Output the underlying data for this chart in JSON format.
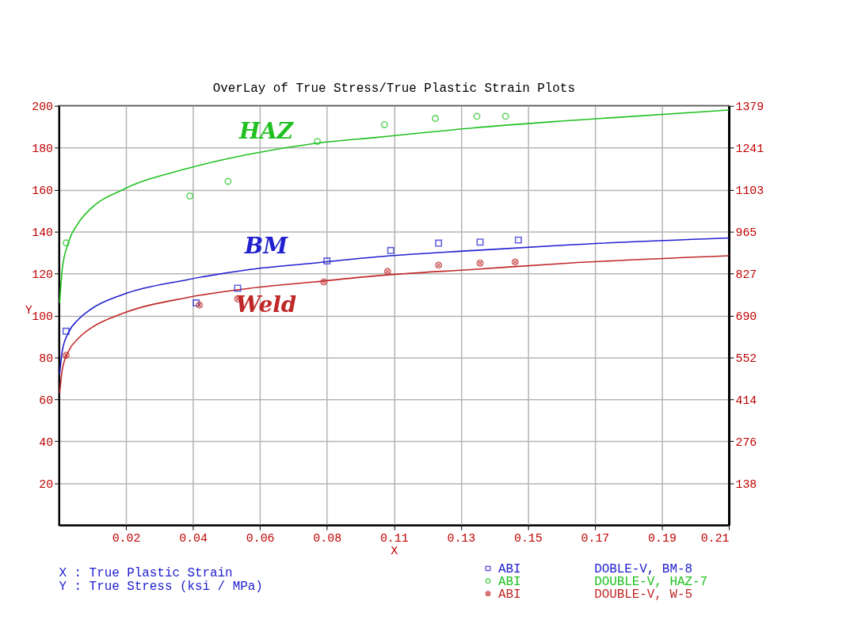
{
  "chart_data": {
    "type": "scatter",
    "title": "OverLay of True Stress/True Plastic Strain Plots",
    "xlabel": "X",
    "ylabel": "Y",
    "xlim": [
      0,
      0.21
    ],
    "xticks": [
      {
        "value": 0.021,
        "label": "0.02"
      },
      {
        "value": 0.042,
        "label": "0.04"
      },
      {
        "value": 0.063,
        "label": "0.06"
      },
      {
        "value": 0.084,
        "label": "0.08"
      },
      {
        "value": 0.105,
        "label": "0.11"
      },
      {
        "value": 0.126,
        "label": "0.13"
      },
      {
        "value": 0.147,
        "label": "0.15"
      },
      {
        "value": 0.168,
        "label": "0.17"
      },
      {
        "value": 0.189,
        "label": "0.19"
      },
      {
        "value": 0.21,
        "label": "0.21"
      }
    ],
    "ylim": [
      0,
      200
    ],
    "yticks": [
      20,
      40,
      60,
      80,
      100,
      120,
      140,
      160,
      180,
      200
    ],
    "y2lim": [
      0,
      1379
    ],
    "y2ticks": [
      {
        "value": 137.9,
        "label": "138"
      },
      {
        "value": 275.8,
        "label": "276"
      },
      {
        "value": 413.7,
        "label": "414"
      },
      {
        "value": 551.6,
        "label": "552"
      },
      {
        "value": 689.5,
        "label": "690"
      },
      {
        "value": 827.4,
        "label": "827"
      },
      {
        "value": 965.3,
        "label": "965"
      },
      {
        "value": 1103.2,
        "label": "1103"
      },
      {
        "value": 1241.1,
        "label": "1241"
      },
      {
        "value": 1379,
        "label": "1379"
      }
    ],
    "grid": true,
    "legend": "bottom",
    "series": [
      {
        "type": "line",
        "name": "HAZ",
        "color": "#20c020",
        "marker": "none",
        "line_style": "solid",
        "x": [
          0.0002,
          0.001,
          0.003,
          0.006,
          0.01,
          0.02,
          0.04,
          0.06,
          0.08,
          0.1,
          0.13,
          0.16,
          0.21
        ],
        "values": [
          106,
          122,
          135,
          144,
          151,
          160,
          170,
          177,
          182,
          185,
          189.5,
          193,
          198
        ]
      },
      {
        "type": "line",
        "name": "BM",
        "color": "#2020d0",
        "marker": "none",
        "line_style": "solid",
        "x": [
          0.0002,
          0.001,
          0.003,
          0.006,
          0.01,
          0.02,
          0.04,
          0.06,
          0.08,
          0.1,
          0.13,
          0.16,
          0.21
        ],
        "values": [
          72,
          83,
          92,
          98,
          103,
          110,
          117,
          122,
          125,
          128,
          131,
          133.7,
          137
        ]
      },
      {
        "type": "line",
        "name": "Weld",
        "color": "#c02828",
        "marker": "none",
        "line_style": "solid",
        "x": [
          0.0002,
          0.001,
          0.003,
          0.006,
          0.01,
          0.02,
          0.04,
          0.06,
          0.08,
          0.1,
          0.13,
          0.16,
          0.21
        ],
        "values": [
          63,
          74,
          83,
          89,
          94,
          101,
          108.5,
          113,
          116,
          119,
          122,
          125,
          128.5
        ]
      },
      {
        "name": "ABI",
        "color": "#2020d0",
        "marker": "square",
        "x": [
          0.0022,
          0.043,
          0.056,
          0.084,
          0.104,
          0.119,
          0.132,
          0.144
        ],
        "values": [
          92.5,
          106,
          113,
          126,
          131,
          134.5,
          135,
          136
        ]
      },
      {
        "name": "ABI",
        "color": "#20c020",
        "marker": "circle",
        "x": [
          0.0022,
          0.041,
          0.053,
          0.081,
          0.102,
          0.118,
          0.131,
          0.14
        ],
        "values": [
          134.6,
          157,
          164,
          183,
          191,
          194,
          195,
          195
        ]
      },
      {
        "name": "ABI",
        "color": "#c02828",
        "marker": "cross",
        "x": [
          0.0022,
          0.044,
          0.056,
          0.083,
          0.103,
          0.119,
          0.132,
          0.143
        ],
        "values": [
          81,
          105,
          108,
          116,
          121,
          124,
          125,
          125.5
        ]
      }
    ],
    "annotations": [
      "X : True Plastic Strain",
      "Y : True Stress (ksi / MPa)",
      "DOBLE-V, BM-8",
      "DOUBLE-V, HAZ-7",
      "DOUBLE-V, W-5"
    ]
  }
}
